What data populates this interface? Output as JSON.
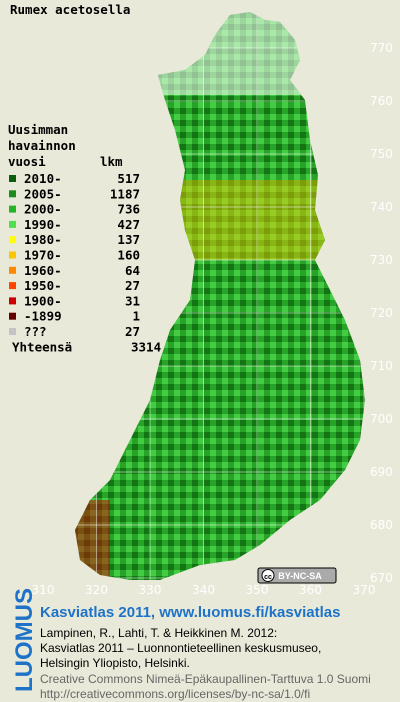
{
  "title": "Rumex acetosella",
  "legend": {
    "heading": [
      "Uusimman",
      "havainnon"
    ],
    "heading_year": "vuosi",
    "heading_count": "lkm",
    "items": [
      {
        "label": "2010-",
        "count": 517,
        "color": "#0b5e0b"
      },
      {
        "label": "2005-",
        "count": 1187,
        "color": "#1c8c1c"
      },
      {
        "label": "2000-",
        "count": 736,
        "color": "#25b425"
      },
      {
        "label": "1990-",
        "count": 427,
        "color": "#4fe04f"
      },
      {
        "label": "1980-",
        "count": 137,
        "color": "#ffff00"
      },
      {
        "label": "1970-",
        "count": 160,
        "color": "#ffc400"
      },
      {
        "label": "1960-",
        "count": 64,
        "color": "#ff8800"
      },
      {
        "label": "1950-",
        "count": 27,
        "color": "#ff4400"
      },
      {
        "label": "1900-",
        "count": 31,
        "color": "#cc0000"
      },
      {
        "label": "-1899",
        "count": 1,
        "color": "#660000"
      },
      {
        "label": "???",
        "count": 27,
        "color": "#c4c4c4"
      }
    ],
    "total_label": "Yhteensä",
    "total": 3314
  },
  "map": {
    "y_ticks": [
      770,
      760,
      750,
      740,
      730,
      720,
      710,
      700,
      690,
      680,
      670
    ],
    "x_ticks": [
      310,
      320,
      330,
      340,
      350,
      360,
      370
    ]
  },
  "license": {
    "cc": "cc",
    "terms": "BY-NC-SA"
  },
  "footer": {
    "brand": "LUOMUS",
    "headline": "Kasviatlas 2011, www.luomus.fi/kasviatlas",
    "citation": [
      "Lampinen, R., Lahti, T. & Heikkinen M. 2012:",
      "Kasviatlas 2011 – Luonnontieteellinen keskusmuseo,",
      "Helsingin Yliopisto, Helsinki."
    ],
    "license_text": [
      "Creative Commons Nimeä-Epäkaupallinen-Tarttuva 1.0 Suomi",
      "http://creativecommons.org/licenses/by-nc-sa/1.0/fi"
    ]
  }
}
